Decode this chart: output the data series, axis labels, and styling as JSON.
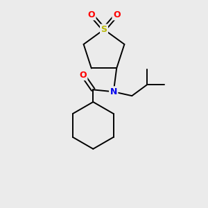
{
  "background_color": "#ebebeb",
  "atom_colors": {
    "S": "#b8b800",
    "O": "#ff0000",
    "N": "#0000ee",
    "C": "#000000"
  },
  "bond_color": "#000000",
  "bond_width": 1.4,
  "label_fontsize": 8.5
}
